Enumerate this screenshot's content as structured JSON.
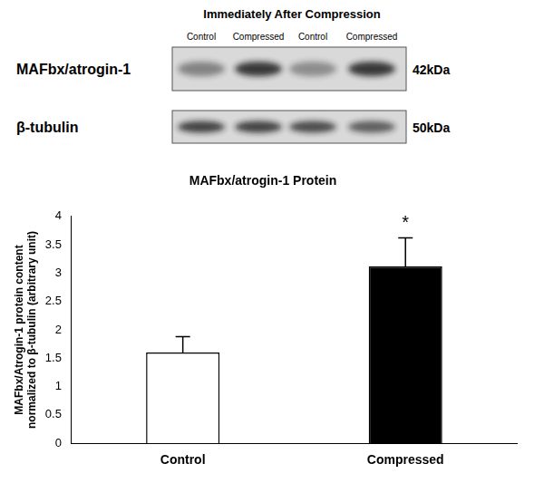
{
  "blot": {
    "title": "Immediately After Compression",
    "lanes": [
      "Control",
      "Compressed",
      "Control",
      "Compressed"
    ],
    "rows": [
      {
        "label": "MAFbx/atrogin-1",
        "size": "42kDa"
      },
      {
        "label": "β-tubulin",
        "size": "50kDa"
      }
    ]
  },
  "chart_data": {
    "type": "bar",
    "title": "MAFbx/atrogin-1 Protein",
    "y_label": [
      "MAFbx/Atrogin-1 protein content",
      "normalized to β-tubulin (arbitrary unit)"
    ],
    "categories": [
      "Control",
      "Compressed"
    ],
    "values": [
      1.6,
      3.12
    ],
    "errors": [
      0.28,
      0.5
    ],
    "colors": [
      "#ffffff",
      "#000000"
    ],
    "ylim": [
      0,
      4
    ],
    "yticks": [
      0,
      0.5,
      1,
      1.5,
      2,
      2.5,
      3,
      3.5,
      4
    ],
    "grid": false,
    "annotations": [
      {
        "text": "*",
        "category": "Compressed"
      }
    ]
  }
}
